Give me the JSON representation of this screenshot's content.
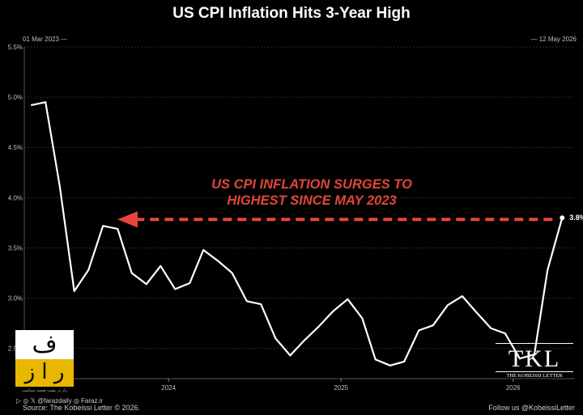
{
  "title": "US CPI Inflation Hits 3-Year High",
  "range_start": "01 Mar 2023 —",
  "range_end": "— 12 May 2026",
  "annotation_lines": [
    "US CPI INFLATION SURGES TO",
    "HIGHEST SINCE MAY 2023"
  ],
  "last_value_label": "3.8%",
  "source": "Source: The Kobeissi Letter © 2026.",
  "follow": "Follow us @KobeissiLetter",
  "watermark": {
    "caption": "راز در پشت صحنه سیاست",
    "social": "▷ ◎ 𝕏 @farazdaily   ◎ Faraz.ir"
  },
  "brand": {
    "mark": "TKL",
    "name": "THE KOBEISSI LETTER"
  },
  "colors": {
    "line": "#ffffff",
    "arrow": "#e8463a",
    "grid": "#3a3a3a",
    "annotation": "#e0453a"
  },
  "chart_data": {
    "type": "line",
    "title": "US CPI Inflation Hits 3-Year High",
    "xlabel": "",
    "ylabel": "",
    "ylim": [
      2.2,
      5.5
    ],
    "xlim": [
      "2023-03-01",
      "2026-05-12"
    ],
    "y_ticks": [
      "2.5%",
      "3.0%",
      "3.5%",
      "4.0%",
      "4.5%",
      "5.0%",
      "5.5%"
    ],
    "x_ticks": [
      "2024",
      "2025",
      "2026"
    ],
    "grid": true,
    "series": [
      {
        "dates": [
          "2023-03",
          "2023-04",
          "2023-05",
          "2023-06",
          "2023-07",
          "2023-08",
          "2023-09",
          "2023-10",
          "2023-11",
          "2023-12",
          "2024-01",
          "2024-02",
          "2024-03",
          "2024-04",
          "2024-05",
          "2024-06",
          "2024-07",
          "2024-08",
          "2024-09",
          "2024-10",
          "2024-11",
          "2024-12",
          "2025-01",
          "2025-02",
          "2025-03",
          "2025-04",
          "2025-05",
          "2025-06",
          "2025-07",
          "2025-08",
          "2025-09",
          "2025-10",
          "2025-11",
          "2025-12",
          "2026-01",
          "2026-02",
          "2026-03",
          "2026-04"
        ],
        "values": [
          4.92,
          4.95,
          4.12,
          3.07,
          3.28,
          3.72,
          3.69,
          3.25,
          3.14,
          3.32,
          3.09,
          3.15,
          3.48,
          3.37,
          3.25,
          2.97,
          2.94,
          2.6,
          2.43,
          2.58,
          2.72,
          2.87,
          2.99,
          2.8,
          2.39,
          2.33,
          2.37,
          2.68,
          2.73,
          2.93,
          3.02,
          2.86,
          2.7,
          2.65,
          2.4,
          2.44,
          3.28,
          3.8
        ]
      }
    ],
    "annotations": [
      {
        "text": "3.8%",
        "date": "2026-04",
        "value": 3.8
      }
    ]
  }
}
